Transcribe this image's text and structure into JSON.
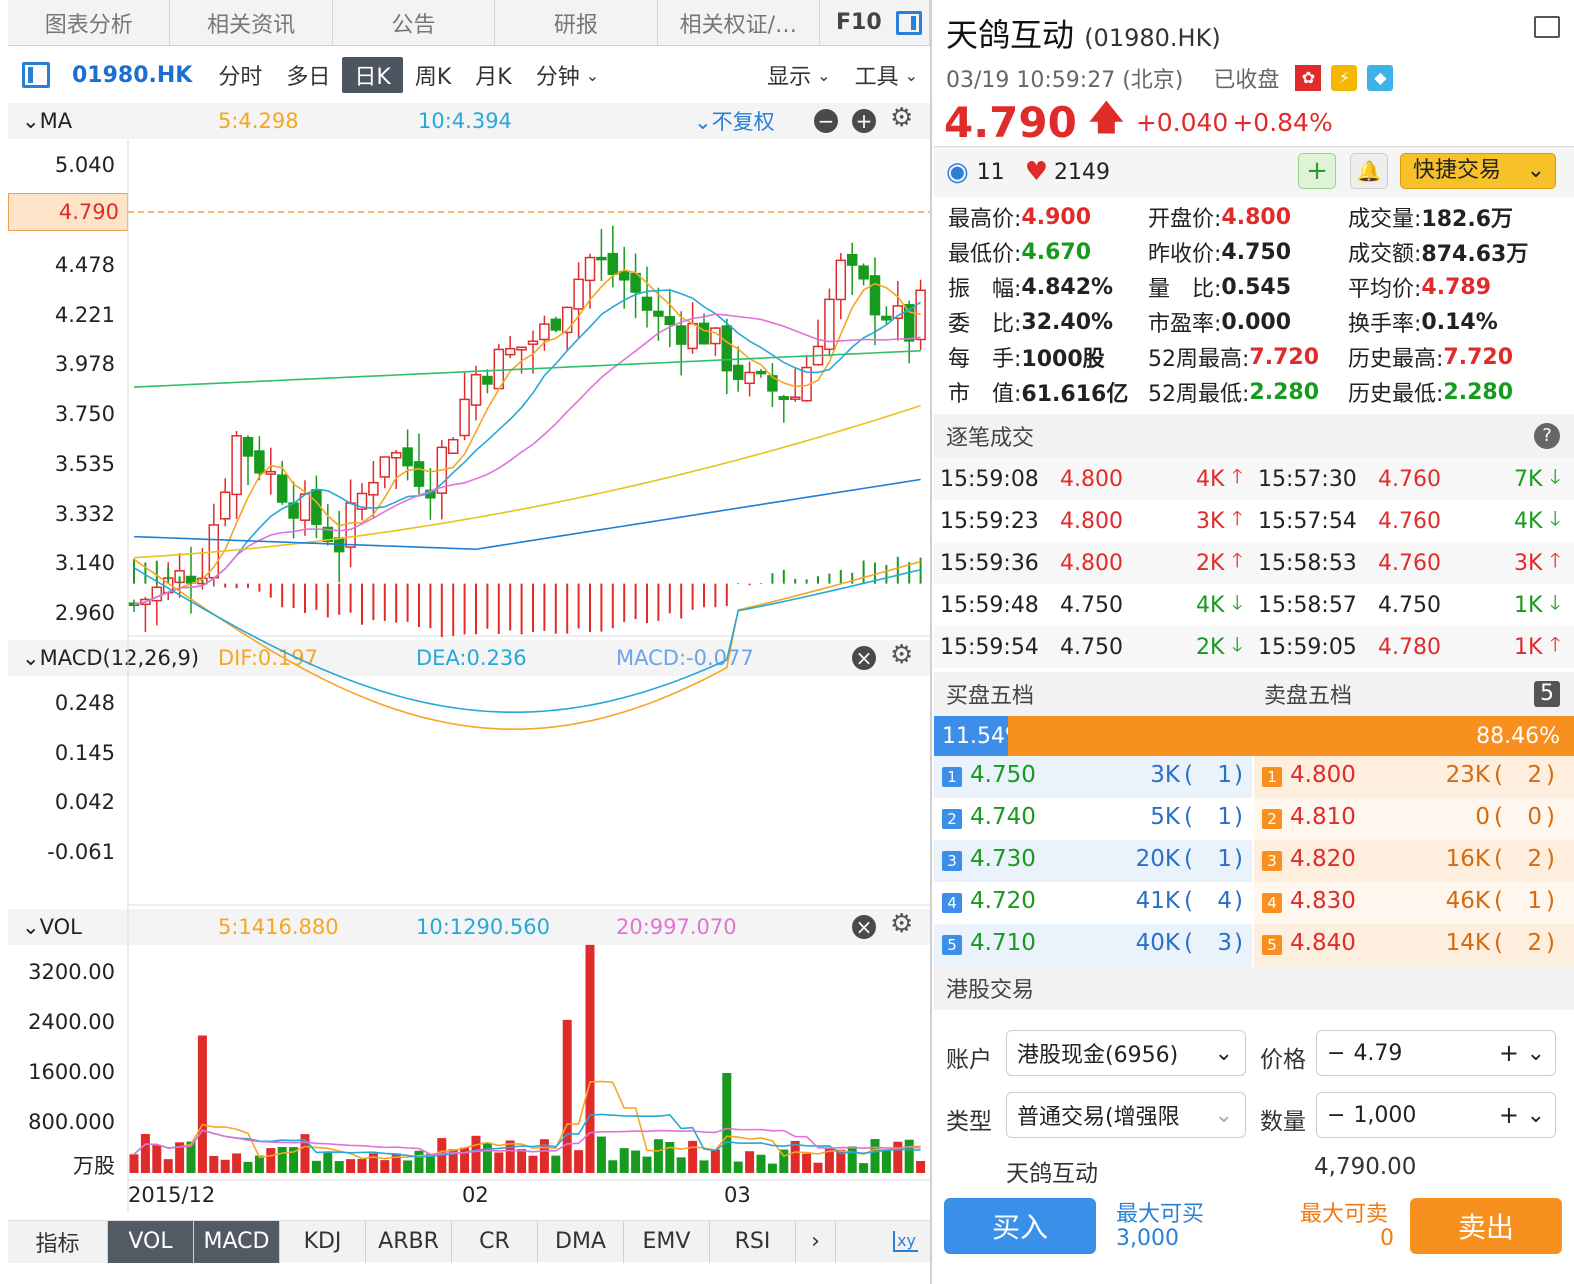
{
  "top_tabs": [
    "图表分析",
    "相关资讯",
    "公告",
    "研报",
    "相关权证/…",
    "F10"
  ],
  "toolbar": {
    "code": "01980.HK",
    "periods": [
      "分时",
      "多日",
      "日K",
      "周K",
      "月K"
    ],
    "minute": "分钟",
    "display": "显示",
    "tools": "工具"
  },
  "ma_panel": {
    "name": "MA",
    "ma5": "5:4.298",
    "ma10": "10:4.394",
    "fq": "不复权",
    "ylabels": [
      "5.040",
      "4.790",
      "4.478",
      "4.221",
      "3.978",
      "3.750",
      "3.535",
      "3.332",
      "3.140",
      "2.960"
    ]
  },
  "macd_panel": {
    "name": "MACD(12,26,9)",
    "dif": "DIF:0.197",
    "dea": "DEA:0.236",
    "macd": "MACD:-0.077",
    "ylabels": [
      "0.248",
      "0.145",
      "0.042",
      "-0.061"
    ]
  },
  "vol_panel": {
    "name": "VOL",
    "v5": "5:1416.880",
    "v10": "10:1290.560",
    "v20": "20:997.070",
    "ylabels": [
      "3200.00",
      "2400.00",
      "1600.00",
      "800.000",
      "万股"
    ],
    "xlabels": [
      "2015/12",
      "02",
      "03"
    ]
  },
  "indicator_tabs": [
    "指标",
    "VOL",
    "MACD",
    "KDJ",
    "ARBR",
    "CR",
    "DMA",
    "EMV",
    "RSI"
  ],
  "stock": {
    "name": "天鸽互动",
    "code": "(01980.HK)",
    "time": "03/19 10:59:27 (北京)",
    "status": "已收盘",
    "price": "4.790",
    "change": "+0.040",
    "pct": "+0.84%",
    "watch": "11",
    "likes": "2149",
    "quick_trade": "快捷交易"
  },
  "stats": [
    [
      "最高价:",
      "4.900",
      "red"
    ],
    [
      "开盘价:",
      "4.800",
      "red"
    ],
    [
      "成交量:",
      "182.6万",
      ""
    ],
    [
      "最低价:",
      "4.670",
      "green"
    ],
    [
      "昨收价:",
      "4.750",
      ""
    ],
    [
      "成交额:",
      "874.63万",
      ""
    ],
    [
      "振　幅:",
      "4.842%",
      ""
    ],
    [
      "量　比:",
      "0.545",
      ""
    ],
    [
      "平均价:",
      "4.789",
      "red"
    ],
    [
      "委　比:",
      "32.40%",
      ""
    ],
    [
      "市盈率:",
      "0.000",
      ""
    ],
    [
      "换手率:",
      "0.14%",
      ""
    ],
    [
      "每　手:",
      "1000股",
      ""
    ],
    [
      "52周最高:",
      "7.720",
      "red"
    ],
    [
      "历史最高:",
      "7.720",
      "red"
    ],
    [
      "市　值:",
      "61.616亿",
      ""
    ],
    [
      "52周最低:",
      "2.280",
      "green"
    ],
    [
      "历史最低:",
      "2.280",
      "green"
    ]
  ],
  "ticks_title": "逐笔成交",
  "ticks": [
    [
      [
        "15:59:08",
        "4.800",
        "4K",
        "up"
      ],
      [
        "15:57:30",
        "4.760",
        "7K",
        "down"
      ]
    ],
    [
      [
        "15:59:23",
        "4.800",
        "3K",
        "up"
      ],
      [
        "15:57:54",
        "4.760",
        "4K",
        "down"
      ]
    ],
    [
      [
        "15:59:36",
        "4.800",
        "2K",
        "up"
      ],
      [
        "15:58:53",
        "4.760",
        "3K",
        "up"
      ]
    ],
    [
      [
        "15:59:48",
        "4.750",
        "4K",
        "down"
      ],
      [
        "15:58:57",
        "4.750",
        "1K",
        "down"
      ]
    ],
    [
      [
        "15:59:54",
        "4.750",
        "2K",
        "down"
      ],
      [
        "15:59:05",
        "4.780",
        "1K",
        "up"
      ]
    ]
  ],
  "book": {
    "buy_title": "买盘五档",
    "sell_title": "卖盘五档",
    "levels": "5",
    "buy_pct": "11.54%",
    "sell_pct": "88.46%",
    "bids": [
      [
        "1",
        "4.750",
        "3K",
        "1"
      ],
      [
        "2",
        "4.740",
        "5K",
        "1"
      ],
      [
        "3",
        "4.730",
        "20K",
        "1"
      ],
      [
        "4",
        "4.720",
        "41K",
        "4"
      ],
      [
        "5",
        "4.710",
        "40K",
        "3"
      ]
    ],
    "asks": [
      [
        "1",
        "4.800",
        "23K",
        "2"
      ],
      [
        "2",
        "4.810",
        "0",
        "0"
      ],
      [
        "3",
        "4.820",
        "16K",
        "2"
      ],
      [
        "4",
        "4.830",
        "46K",
        "1"
      ],
      [
        "5",
        "4.840",
        "14K",
        "2"
      ]
    ]
  },
  "trade": {
    "title": "港股交易",
    "account_label": "账户",
    "account": "港股现金(6956)",
    "price_label": "价格",
    "price": "4.79",
    "type_label": "类型",
    "type": "普通交易(增强限",
    "qty_label": "数量",
    "qty": "1,000",
    "stock_name": "天鸽互动",
    "amount": "4,790.00",
    "buy": "买入",
    "sell": "卖出",
    "max_buy_label": "最大可买",
    "max_buy": "3,000",
    "max_sell_label": "最大可卖",
    "max_sell": "0"
  },
  "colors": {
    "up": "#e02b2b",
    "down": "#179a1d",
    "ma5": "#f5a623",
    "ma10": "#26a8d8",
    "ma20": "#e273d6",
    "ma30": "#2fbf6b",
    "ma60": "#e8c21c",
    "ma120": "#1e7fd6",
    "orange": "#f7901e",
    "blue": "#3d8ee8"
  }
}
